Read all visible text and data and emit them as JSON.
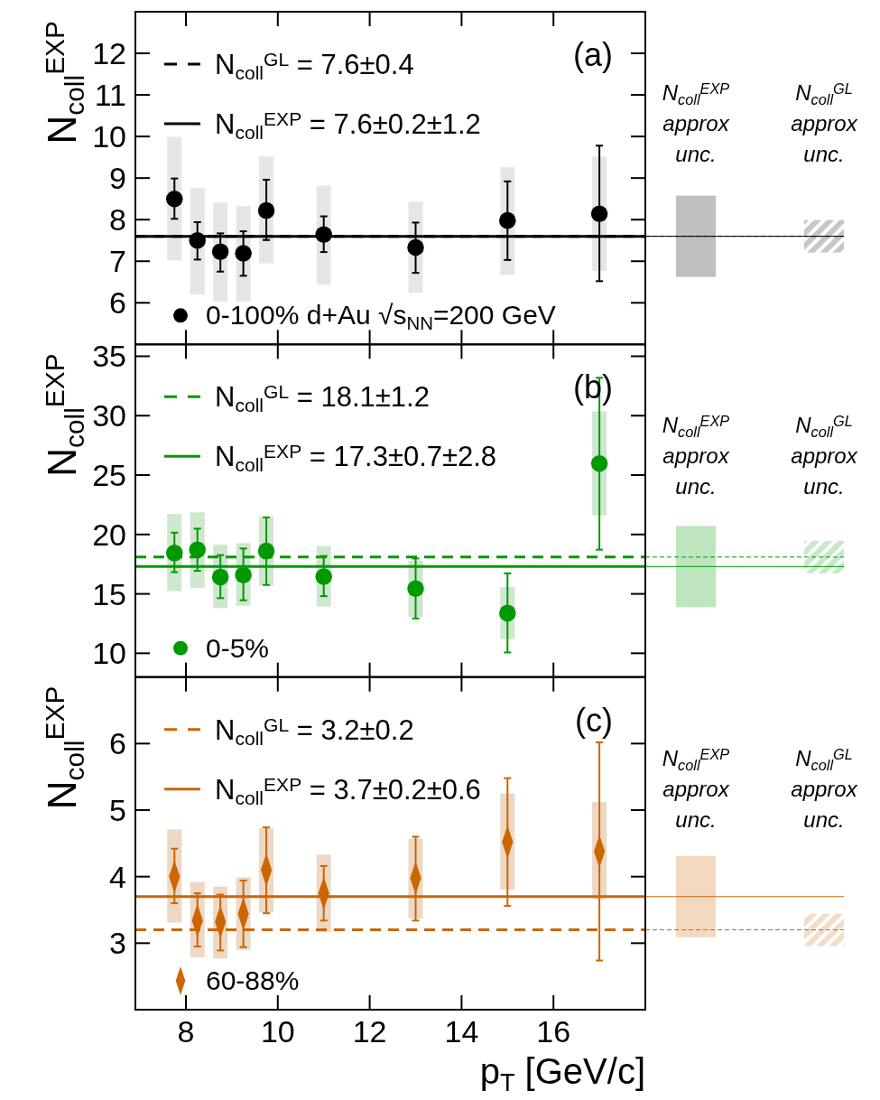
{
  "chart_data": [
    {
      "type": "scatter",
      "title": "(a)",
      "ylabel": "N$_{coll}$$^{EXP}$",
      "xlim": [
        6.9,
        18
      ],
      "xticks": [
        8,
        10,
        12,
        14,
        16
      ],
      "ylim": [
        5,
        13
      ],
      "yticks": [
        6,
        7,
        8,
        9,
        10,
        11,
        12
      ],
      "tick_labels": "y",
      "legend": "bottom left",
      "marker": "circle",
      "series": [
        {
          "type": "bar",
          "color": "#e6e6e6",
          "x": [
            7.75,
            8.25,
            8.75,
            9.25,
            9.75,
            11,
            13,
            15,
            17
          ],
          "base": [
            7.02,
            6.2,
            6.03,
            6.03,
            6.95,
            6.44,
            6.24,
            6.67,
            6.77
          ],
          "values": [
            2.97,
            2.56,
            2.38,
            2.3,
            2.57,
            2.38,
            2.19,
            2.59,
            2.75
          ]
        },
        {
          "name": "0-100% d+Au √s$_{NN}$=200 GeV",
          "color": "#000000",
          "x": [
            7.75,
            8.25,
            8.75,
            9.25,
            9.75,
            11,
            13,
            15,
            17
          ],
          "values": [
            8.5,
            7.5,
            7.23,
            7.19,
            8.22,
            7.64,
            7.33,
            7.98,
            8.14
          ],
          "errors": [
            [
              8.02,
              8.99
            ],
            [
              7.04,
              7.94
            ],
            [
              6.75,
              7.67
            ],
            [
              6.65,
              7.72
            ],
            [
              7.51,
              8.96
            ],
            [
              7.22,
              8.08
            ],
            [
              6.72,
              7.93
            ],
            [
              7.03,
              8.92
            ],
            [
              6.52,
              9.78
            ]
          ]
        }
      ],
      "ref_lines": [
        {
          "axis": "y",
          "value": 7.6,
          "label": "N$_{coll}$$^{GL}$ = 7.6±0.4",
          "color": "#000000",
          "line_style": "dashed"
        },
        {
          "axis": "y",
          "value": 7.6,
          "label": "N$_{coll}$$^{EXP}$ = 7.6±0.2±1.2",
          "color": "#000000",
          "line_style": "solid"
        }
      ],
      "annotations": [
        "N$_{coll}$$^{EXP}$ approx unc.",
        "N$_{coll}$$^{GL}$ approx unc."
      ]
    },
    {
      "type": "scatter",
      "title": "(b)",
      "ylabel": "N$_{coll}$$^{EXP}$",
      "xlim": [
        6.9,
        18
      ],
      "xticks": [
        8,
        10,
        12,
        14,
        16
      ],
      "ylim": [
        8,
        36
      ],
      "yticks": [
        10,
        15,
        20,
        25,
        30,
        35
      ],
      "tick_labels": "y",
      "legend": "bottom left",
      "marker": "circle",
      "series": [
        {
          "type": "bar",
          "color": "#cfe6cf",
          "x": [
            7.75,
            8.25,
            8.75,
            9.25,
            9.75,
            11,
            13,
            15,
            17
          ],
          "base": [
            15.23,
            15.51,
            13.8,
            14.01,
            15.68,
            13.94,
            13.07,
            11.19,
            21.61
          ],
          "values": [
            6.49,
            6.35,
            5.34,
            5.26,
            5.83,
            5.09,
            4.71,
            4.39,
            8.75
          ]
        },
        {
          "name": "0-5%",
          "color": "#009900",
          "x": [
            7.75,
            8.25,
            8.75,
            9.25,
            9.75,
            11,
            13,
            15,
            17
          ],
          "values": [
            18.44,
            18.72,
            16.42,
            16.59,
            18.61,
            16.45,
            15.44,
            13.38,
            25.97
          ],
          "errors": [
            [
              16.83,
              20.15
            ],
            [
              16.94,
              20.49
            ],
            [
              14.64,
              18.26
            ],
            [
              14.46,
              18.82
            ],
            [
              15.75,
              21.44
            ],
            [
              14.81,
              18.19
            ],
            [
              12.93,
              17.98
            ],
            [
              10.07,
              16.73
            ],
            [
              18.72,
              33.19
            ]
          ]
        }
      ],
      "ref_lines": [
        {
          "axis": "y",
          "value": 18.1,
          "label": "N$_{coll}$$^{GL}$ = 18.1±1.2",
          "color": "#009900",
          "line_style": "dashed"
        },
        {
          "axis": "y",
          "value": 17.3,
          "label": "N$_{coll}$$^{EXP}$ = 17.3±0.7±2.8",
          "color": "#009900",
          "line_style": "solid"
        }
      ],
      "annotations": [
        "N$_{coll}$$^{EXP}$ approx unc.",
        "N$_{coll}$$^{GL}$ approx unc."
      ]
    },
    {
      "type": "scatter",
      "title": "(c)",
      "ylabel": "N$_{coll}$$^{EXP}$",
      "xlabel": "p$_{T}$ [GeV/c]",
      "xlim": [
        6.9,
        18
      ],
      "xticks": [
        8,
        10,
        12,
        14,
        16
      ],
      "ylim": [
        2,
        7
      ],
      "yticks": [
        3,
        4,
        5,
        6
      ],
      "legend": "bottom left",
      "marker": "diamond",
      "series": [
        {
          "type": "bar",
          "color": "#ecd8c4",
          "x": [
            7.75,
            8.25,
            8.75,
            9.25,
            9.75,
            11,
            13,
            15,
            17
          ],
          "base": [
            3.31,
            2.79,
            2.77,
            2.9,
            3.46,
            3.17,
            3.37,
            3.8,
            3.66
          ],
          "values": [
            1.4,
            1.13,
            1.08,
            1.09,
            1.27,
            1.16,
            1.2,
            1.45,
            1.46
          ]
        },
        {
          "name": "60-88%",
          "color": "#cc6600",
          "x": [
            7.75,
            8.25,
            8.75,
            9.25,
            9.75,
            11,
            13,
            15,
            17
          ],
          "values": [
            4.0,
            3.34,
            3.32,
            3.44,
            4.1,
            3.75,
            3.98,
            4.52,
            4.38
          ],
          "errors": [
            [
              3.6,
              4.42
            ],
            [
              2.95,
              3.75
            ],
            [
              2.89,
              3.73
            ],
            [
              2.94,
              3.94
            ],
            [
              3.45,
              4.74
            ],
            [
              3.34,
              4.16
            ],
            [
              3.34,
              4.6
            ],
            [
              3.56,
              5.48
            ],
            [
              2.74,
              6.02
            ]
          ]
        }
      ],
      "ref_lines": [
        {
          "axis": "y",
          "value": 3.2,
          "label": "N$_{coll}$$^{GL}$ = 3.2±0.2",
          "color": "#cc6600",
          "line_style": "dashed"
        },
        {
          "axis": "y",
          "value": 3.7,
          "label": "N$_{coll}$$^{EXP}$ = 3.7±0.2±0.6",
          "color": "#cc6600",
          "line_style": "solid"
        }
      ],
      "annotations": [
        "N$_{coll}$$^{EXP}$ approx unc.",
        "N$_{coll}$$^{GL}$ approx unc."
      ]
    }
  ]
}
